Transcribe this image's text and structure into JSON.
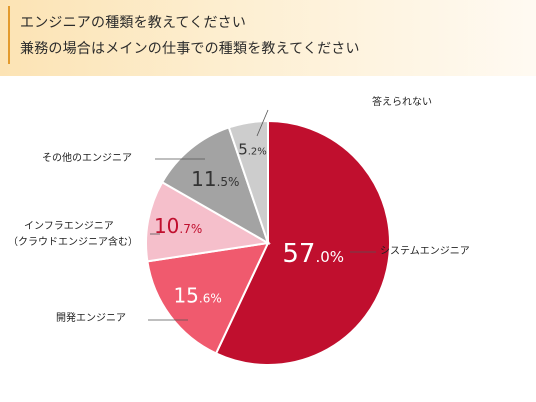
{
  "title": {
    "line1": "エンジニアの種類を教えてください",
    "line2": "兼務の場合はメインの仕事での種類を教えてください"
  },
  "chart_data": {
    "type": "pie",
    "unit": "%",
    "slices": [
      {
        "label": "システムエンジニア",
        "value_int": "57",
        "value_dec": ".0%",
        "value": 57.0,
        "color": "#c00f2e",
        "value_color": "#ffffff"
      },
      {
        "label": "開発エンジニア",
        "value_int": "15",
        "value_dec": ".6%",
        "value": 15.6,
        "color": "#f05a6e",
        "value_color": "#ffffff"
      },
      {
        "label_lines": [
          "インフラエンジニア",
          "（クラウドエンジニア含む）"
        ],
        "value_int": "10",
        "value_dec": ".7%",
        "value": 10.7,
        "color": "#f5bfcb",
        "value_color": "#c00f2e"
      },
      {
        "label": "その他のエンジニア",
        "value_int": "11",
        "value_dec": ".5%",
        "value": 11.5,
        "color": "#a3a3a3",
        "value_color": "#333333"
      },
      {
        "label": "答えられない",
        "value_int": "5",
        "value_dec": ".2%",
        "value": 5.2,
        "color": "#cdcdcd",
        "value_color": "#333333"
      }
    ]
  }
}
